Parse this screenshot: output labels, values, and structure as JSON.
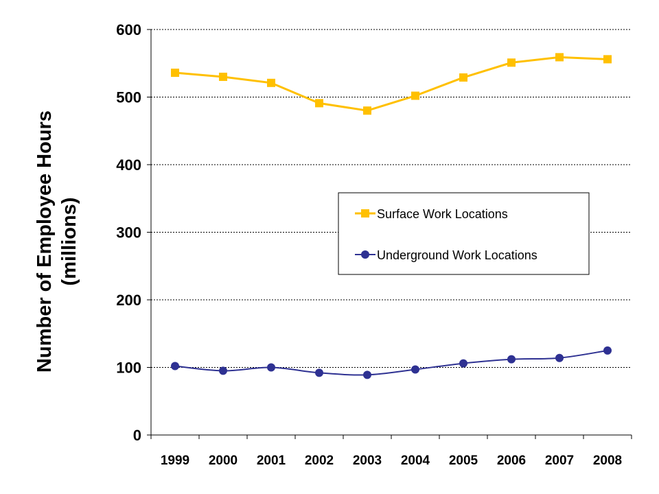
{
  "chart_data": {
    "type": "line",
    "title": "",
    "xlabel": "",
    "ylabel": [
      "Number of Employee Hours",
      "(millions)"
    ],
    "ylim": [
      0,
      600
    ],
    "yticks": [
      "0",
      "100",
      "200",
      "300",
      "400",
      "500",
      "600"
    ],
    "categories": [
      "1999",
      "2000",
      "2001",
      "2002",
      "2003",
      "2004",
      "2005",
      "2006",
      "2007",
      "2008"
    ],
    "grid": true,
    "legend_position": "center-right",
    "series": [
      {
        "name": "Surface Work Locations",
        "marker": "square",
        "color": "#FFC000",
        "values": [
          536,
          530,
          521,
          491,
          480,
          502,
          529,
          551,
          559,
          556
        ]
      },
      {
        "name": "Underground Work Locations",
        "marker": "circle",
        "color": "#2E3192",
        "values": [
          102,
          95,
          100,
          92,
          89,
          97,
          106,
          112,
          114,
          125
        ]
      }
    ]
  }
}
